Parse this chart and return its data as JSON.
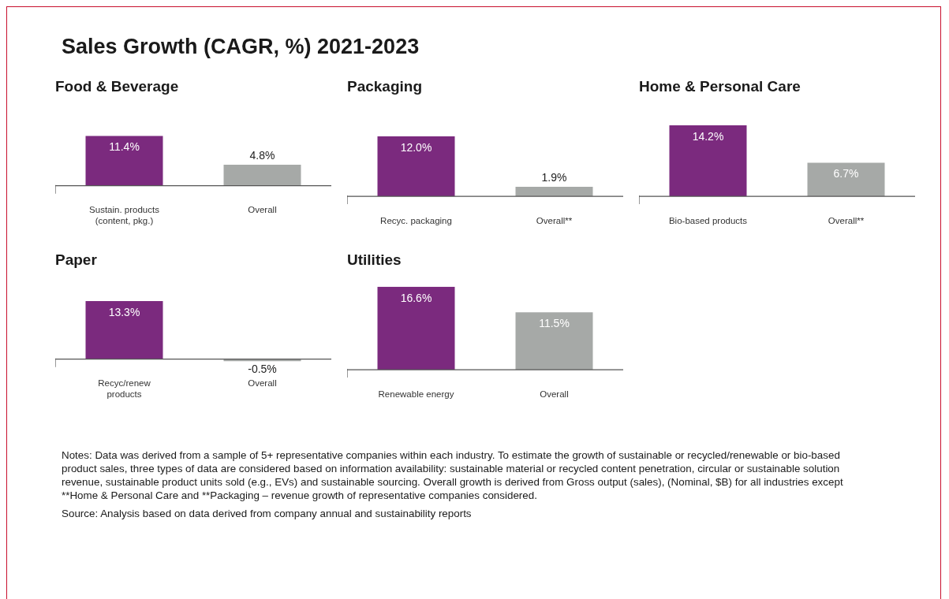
{
  "chart_data": [
    {
      "type": "other",
      "title": "Sales Growth (CAGR, %) 2021-2023"
    },
    {
      "type": "bar",
      "title": "Food & Beverage",
      "categories": [
        "Sustain. products (content, pkg.)",
        "Overall"
      ],
      "values": [
        11.4,
        4.8
      ],
      "colors": [
        "#7b2a7e",
        "#a6a9a7"
      ],
      "value_labels": [
        "11.4%",
        "4.8%"
      ],
      "grid": false,
      "legend": false
    },
    {
      "type": "bar",
      "title": "Packaging",
      "categories": [
        "Recyc. packaging",
        "Overall**"
      ],
      "values": [
        12.0,
        1.9
      ],
      "colors": [
        "#7b2a7e",
        "#a6a9a7"
      ],
      "value_labels": [
        "12.0%",
        "1.9%"
      ],
      "grid": false,
      "legend": false
    },
    {
      "type": "bar",
      "title": "Home & Personal Care",
      "categories": [
        "Bio-based products",
        "Overall**"
      ],
      "values": [
        14.2,
        6.7
      ],
      "colors": [
        "#7b2a7e",
        "#a6a9a7"
      ],
      "value_labels": [
        "14.2%",
        "6.7%"
      ],
      "grid": false,
      "legend": false
    },
    {
      "type": "bar",
      "title": "Paper",
      "categories": [
        "Recyc/renew products",
        "Overall"
      ],
      "values": [
        13.3,
        -0.5
      ],
      "colors": [
        "#7b2a7e",
        "#a6a9a7"
      ],
      "value_labels": [
        "13.3%",
        "-0.5%"
      ],
      "grid": false,
      "legend": false
    },
    {
      "type": "bar",
      "title": "Utilities",
      "categories": [
        "Renewable energy",
        "Overall"
      ],
      "values": [
        16.6,
        11.5
      ],
      "colors": [
        "#7b2a7e",
        "#a6a9a7"
      ],
      "value_labels": [
        "16.6%",
        "11.5%"
      ],
      "grid": false,
      "legend": false
    },
    {
      "type": "other",
      "annotations": [
        "Notes: Data was derived from a sample of 5+ representative companies within each industry. To estimate the growth of sustainable or recycled/renewable or bio-based product sales, three types of data are considered based on information availability: sustainable material or recycled content penetration, circular or sustainable solution revenue, sustainable product units sold (e.g., EVs) and sustainable sourcing. Overall growth is derived from Gross output (sales), (Nominal, $B) for all industries except **Home & Personal Care and **Packaging – revenue growth of representative companies considered.",
        "Source: Analysis based on data derived from company annual and sustainability reports"
      ]
    }
  ]
}
